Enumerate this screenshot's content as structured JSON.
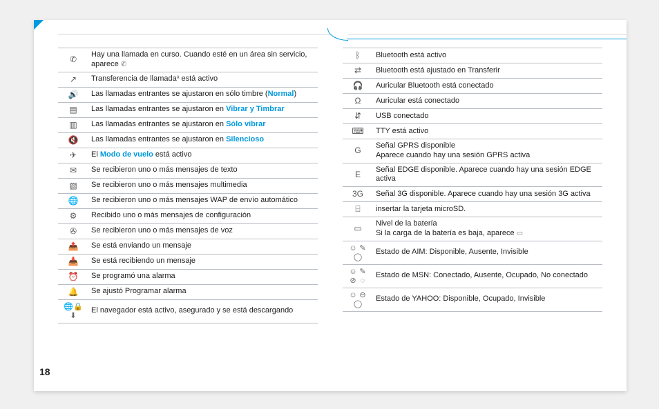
{
  "page_number": "18",
  "left_rows": [
    {
      "icon": "✆",
      "text_parts": [
        {
          "t": "Hay una llamada en curso. Cuando esté en un área sin servicio, aparece "
        },
        {
          "t": "✆",
          "cls": "tiny-icon"
        }
      ]
    },
    {
      "icon": "↗",
      "text_parts": [
        {
          "t": "Transferencia de llamada"
        },
        {
          "t": "ª",
          "cls": "tiny-icon"
        },
        {
          "t": " está activo"
        }
      ]
    },
    {
      "icon": "🔊",
      "text_parts": [
        {
          "t": "Las llamadas entrantes se ajustaron en sólo timbre ("
        },
        {
          "t": "Normal",
          "cls": "hl"
        },
        {
          "t": ")"
        }
      ]
    },
    {
      "icon": "▤",
      "text_parts": [
        {
          "t": "Las llamadas entrantes se ajustaron en "
        },
        {
          "t": "Vibrar y Timbrar",
          "cls": "hl"
        }
      ]
    },
    {
      "icon": "▥",
      "text_parts": [
        {
          "t": "Las llamadas entrantes se ajustaron en "
        },
        {
          "t": "Sólo vibrar",
          "cls": "hl"
        }
      ]
    },
    {
      "icon": "🔇",
      "text_parts": [
        {
          "t": "Las llamadas entrantes se ajustaron en "
        },
        {
          "t": "Silencioso",
          "cls": "hl"
        }
      ]
    },
    {
      "icon": "✈",
      "text_parts": [
        {
          "t": "El "
        },
        {
          "t": "Modo de vuelo",
          "cls": "hl"
        },
        {
          "t": " está activo"
        }
      ]
    },
    {
      "icon": "✉",
      "text_parts": [
        {
          "t": "Se recibieron uno o más mensajes de texto"
        }
      ]
    },
    {
      "icon": "▧",
      "text_parts": [
        {
          "t": "Se recibieron uno o más mensajes multimedia"
        }
      ]
    },
    {
      "icon": "🌐",
      "text_parts": [
        {
          "t": "Se recibieron uno o más mensajes WAP de envío automático"
        }
      ]
    },
    {
      "icon": "⚙",
      "text_parts": [
        {
          "t": "Recibido uno o más mensajes de configuración"
        }
      ]
    },
    {
      "icon": "✇",
      "text_parts": [
        {
          "t": "Se recibieron uno o más mensajes de voz"
        }
      ]
    },
    {
      "icon": "📤",
      "text_parts": [
        {
          "t": "Se está enviando un mensaje"
        }
      ]
    },
    {
      "icon": "📥",
      "text_parts": [
        {
          "t": "Se está recibiendo un mensaje"
        }
      ]
    },
    {
      "icon": "⏰",
      "text_parts": [
        {
          "t": "Se programó una alarma"
        }
      ]
    },
    {
      "icon": "🔔",
      "text_parts": [
        {
          "t": "Se ajustó Programar alarma"
        }
      ]
    },
    {
      "icon": "multi-browser",
      "text_parts": [
        {
          "t": "El navegador está activo, asegurado y se está descargando"
        }
      ]
    }
  ],
  "right_rows": [
    {
      "icon": "ᛒ",
      "text_parts": [
        {
          "t": "Bluetooth está activo"
        }
      ]
    },
    {
      "icon": "⇄",
      "text_parts": [
        {
          "t": "Bluetooth está ajustado en Transferir"
        }
      ]
    },
    {
      "icon": "🎧",
      "text_parts": [
        {
          "t": "Auricular Bluetooth está conectado"
        }
      ]
    },
    {
      "icon": "Ω",
      "text_parts": [
        {
          "t": "Auricular está conectado"
        }
      ]
    },
    {
      "icon": "⇵",
      "text_parts": [
        {
          "t": "USB conectado"
        }
      ]
    },
    {
      "icon": "⌨",
      "text_parts": [
        {
          "t": "TTY está activo"
        }
      ]
    },
    {
      "icon": "G",
      "text_parts": [
        {
          "t": "Señal GPRS disponible"
        },
        {
          "br": true
        },
        {
          "t": "Aparece cuando hay una sesión GPRS activa"
        }
      ]
    },
    {
      "icon": "E",
      "text_parts": [
        {
          "t": "Señal EDGE disponible. Aparece cuando hay una sesión EDGE activa"
        }
      ]
    },
    {
      "icon": "3G",
      "text_parts": [
        {
          "t": "Señal 3G disponible. Aparece cuando hay una sesión 3G activa"
        }
      ]
    },
    {
      "icon": "⌸",
      "text_parts": [
        {
          "t": "insertar la tarjeta microSD."
        }
      ]
    },
    {
      "icon": "▭",
      "text_parts": [
        {
          "t": "Nivel de la batería"
        },
        {
          "br": true
        },
        {
          "t": "Si la carga de la batería es baja, aparece "
        },
        {
          "t": "▭",
          "cls": "tiny-icon"
        }
      ]
    },
    {
      "icon": "multi-aim",
      "text_parts": [
        {
          "t": "Estado de AIM: Disponible, Ausente, Invisible"
        }
      ]
    },
    {
      "icon": "multi-msn",
      "text_parts": [
        {
          "t": "Estado de MSN: Conectado, Ausente, Ocupado, No conectado"
        }
      ]
    },
    {
      "icon": "multi-yahoo",
      "text_parts": [
        {
          "t": "Estado de YAHOO: Disponible, Ocupado, Invisible"
        }
      ]
    }
  ],
  "multi_icons": {
    "multi-browser": [
      "🌐",
      "🔒",
      "⬇"
    ],
    "multi-aim": [
      "☺",
      "✎",
      "◯"
    ],
    "multi-msn": [
      "☺",
      "✎",
      "⊘",
      "◌"
    ],
    "multi-yahoo": [
      "☺",
      "⊖",
      "◯"
    ]
  }
}
